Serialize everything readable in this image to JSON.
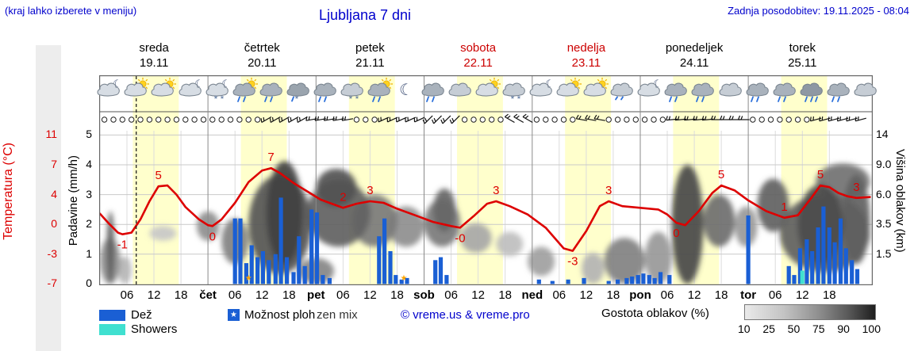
{
  "header": {
    "hint": "(kraj lahko izberete v meniju)",
    "title": "Ljubljana 7 dni",
    "updated": "Zadnja posodobitev: 19.11.2025 - 08:04"
  },
  "colors": {
    "accent_blue": "#0000cc",
    "temp_red": "#dd0000",
    "rain_blue": "#1a5fd4",
    "showers_cyan": "#40e0d0",
    "day_band_yellow": "#ffffcc",
    "weekend_red": "#cc0000",
    "star_orange": "#ffa500"
  },
  "axes": {
    "temp": {
      "title": "Temperatura (°C)",
      "ticks": [
        "11",
        "7",
        "4",
        "0",
        "-3",
        "-7"
      ]
    },
    "precip": {
      "title": "Padavine (mm/h)",
      "ticks": [
        "5",
        "4",
        "3",
        "2",
        "1",
        "0"
      ]
    },
    "cloud_height": {
      "title": "Višina oblakov (km)",
      "ticks": [
        "14",
        "9.0",
        "6.0",
        "3.5",
        "1.5"
      ]
    }
  },
  "days": [
    {
      "name": "sreda",
      "date": "19.11",
      "weekend": false
    },
    {
      "name": "četrtek",
      "date": "20.11",
      "weekend": false
    },
    {
      "name": "petek",
      "date": "21.11",
      "weekend": false
    },
    {
      "name": "sobota",
      "date": "22.11",
      "weekend": true
    },
    {
      "name": "nedelja",
      "date": "23.11",
      "weekend": true
    },
    {
      "name": "ponedeljek",
      "date": "24.11",
      "weekend": false
    },
    {
      "name": "torek",
      "date": "25.11",
      "weekend": false
    }
  ],
  "x_axis": {
    "labels": [
      "06",
      "12",
      "18",
      "čet",
      "06",
      "12",
      "18",
      "pet",
      "06",
      "12",
      "18",
      "sob",
      "06",
      "12",
      "18",
      "ned",
      "06",
      "12",
      "18",
      "pon",
      "06",
      "12",
      "18",
      "tor",
      "06",
      "12",
      "18"
    ]
  },
  "legend": {
    "rain": "Dež",
    "showers": "Showers",
    "chance": "Možnost ploh",
    "star_char": "★",
    "mix": "zen mix",
    "copyright": "© vreme.us & vreme.pro",
    "cloud_density": "Gostota oblakov (%)",
    "density_ticks": [
      "10",
      "25",
      "50",
      "75",
      "90",
      "100"
    ]
  },
  "icons": [
    {
      "h": 2,
      "type": "moon-cloud"
    },
    {
      "h": 8,
      "type": "sun-cloud"
    },
    {
      "h": 14,
      "type": "sun-cloud"
    },
    {
      "h": 20,
      "type": "moon-cloud"
    },
    {
      "h": 26,
      "type": "moon-snow"
    },
    {
      "h": 32,
      "type": "sun-rain"
    },
    {
      "h": 38,
      "type": "rain"
    },
    {
      "h": 44,
      "type": "rain-snow"
    },
    {
      "h": 50,
      "type": "rain"
    },
    {
      "h": 56,
      "type": "snow"
    },
    {
      "h": 62,
      "type": "sun-rain"
    },
    {
      "h": 68,
      "type": "moon"
    },
    {
      "h": 74,
      "type": "rain"
    },
    {
      "h": 80,
      "type": "cloud"
    },
    {
      "h": 86,
      "type": "sun-cloud"
    },
    {
      "h": 92,
      "type": "snow"
    },
    {
      "h": 98,
      "type": "moon-cloud"
    },
    {
      "h": 104,
      "type": "sun-cloud"
    },
    {
      "h": 110,
      "type": "sun-cloud"
    },
    {
      "h": 116,
      "type": "drizzle"
    },
    {
      "h": 122,
      "type": "moon-cloud"
    },
    {
      "h": 128,
      "type": "rain"
    },
    {
      "h": 134,
      "type": "rain"
    },
    {
      "h": 140,
      "type": "cloud"
    },
    {
      "h": 146,
      "type": "rain"
    },
    {
      "h": 152,
      "type": "rain"
    },
    {
      "h": 158,
      "type": "heavy-rain"
    },
    {
      "h": 164,
      "type": "rain"
    },
    {
      "h": 170,
      "type": "cloud"
    }
  ],
  "wind_segments": [
    {
      "from": 0,
      "to": 36,
      "type": "calm"
    },
    {
      "from": 36,
      "to": 46,
      "type": "barb",
      "angle": -120
    },
    {
      "from": 46,
      "to": 56,
      "type": "barb",
      "angle": -100
    },
    {
      "from": 56,
      "to": 62,
      "type": "calm"
    },
    {
      "from": 62,
      "to": 72,
      "type": "barb",
      "angle": -115
    },
    {
      "from": 72,
      "to": 80,
      "type": "barb",
      "angle": -135
    },
    {
      "from": 80,
      "to": 90,
      "type": "calm"
    },
    {
      "from": 90,
      "to": 96,
      "type": "barb",
      "angle": -60
    },
    {
      "from": 96,
      "to": 106,
      "type": "calm"
    },
    {
      "from": 106,
      "to": 112,
      "type": "barb",
      "angle": -80
    },
    {
      "from": 112,
      "to": 126,
      "type": "calm"
    },
    {
      "from": 126,
      "to": 136,
      "type": "barb",
      "angle": -95
    },
    {
      "from": 136,
      "to": 144,
      "type": "barb",
      "angle": -90
    },
    {
      "from": 144,
      "to": 158,
      "type": "calm"
    },
    {
      "from": 158,
      "to": 171,
      "type": "barb",
      "angle": -105
    }
  ],
  "chart_data": {
    "type": "line",
    "title": "Ljubljana 7 dni",
    "x_unit": "hours since 19.11 00:00",
    "x_range": [
      0,
      171
    ],
    "current_time_h": 8.07,
    "temp_axis_range": [
      -7,
      11
    ],
    "precip_axis_range": [
      0,
      5
    ],
    "cloud_height_ticks_km": [
      0,
      1.5,
      3.5,
      6,
      9,
      14
    ],
    "temperature": {
      "color": "#dd0000",
      "points": [
        [
          0,
          1.5
        ],
        [
          2,
          0.3
        ],
        [
          4,
          -0.8
        ],
        [
          5,
          -1
        ],
        [
          7,
          -0.8
        ],
        [
          9,
          0.8
        ],
        [
          11,
          3
        ],
        [
          13,
          4.8
        ],
        [
          15,
          4.9
        ],
        [
          17,
          3.8
        ],
        [
          19,
          2.3
        ],
        [
          22,
          0.8
        ],
        [
          24,
          0.1
        ],
        [
          25,
          0
        ],
        [
          27,
          0.8
        ],
        [
          30,
          2.8
        ],
        [
          33,
          5.3
        ],
        [
          36,
          6.7
        ],
        [
          38,
          7
        ],
        [
          40,
          6.4
        ],
        [
          43,
          5.2
        ],
        [
          46,
          4.2
        ],
        [
          49,
          3.2
        ],
        [
          52,
          2.6
        ],
        [
          54,
          2.2
        ],
        [
          57,
          2.7
        ],
        [
          60,
          3
        ],
        [
          63,
          2.8
        ],
        [
          66,
          2.1
        ],
        [
          70,
          1.3
        ],
        [
          74,
          0.5
        ],
        [
          78,
          0
        ],
        [
          80,
          -0.2
        ],
        [
          83,
          1.2
        ],
        [
          86,
          2.7
        ],
        [
          88,
          3
        ],
        [
          91,
          2.4
        ],
        [
          95,
          1.4
        ],
        [
          99,
          -0.2
        ],
        [
          103,
          -2.7
        ],
        [
          105,
          -3
        ],
        [
          108,
          -0.6
        ],
        [
          111,
          2.4
        ],
        [
          113,
          3
        ],
        [
          116,
          2.4
        ],
        [
          120,
          2.2
        ],
        [
          124,
          2
        ],
        [
          126,
          1.4
        ],
        [
          128,
          0.4
        ],
        [
          130,
          0.1
        ],
        [
          133,
          1.8
        ],
        [
          136,
          4
        ],
        [
          138,
          4.9
        ],
        [
          141,
          4.3
        ],
        [
          144,
          3.1
        ],
        [
          148,
          1.8
        ],
        [
          152,
          1
        ],
        [
          155,
          1.3
        ],
        [
          158,
          3.4
        ],
        [
          160,
          4.9
        ],
        [
          162,
          4.7
        ],
        [
          164,
          4
        ],
        [
          166,
          3.6
        ],
        [
          168,
          3.4
        ],
        [
          171,
          3.5
        ]
      ],
      "labels": [
        {
          "h": 5,
          "text": "-1",
          "pos": "below"
        },
        {
          "h": 13,
          "text": "5",
          "pos": "above"
        },
        {
          "h": 25,
          "text": "0",
          "pos": "below"
        },
        {
          "h": 38,
          "text": "7",
          "pos": "above"
        },
        {
          "h": 54,
          "text": "2",
          "pos": "above"
        },
        {
          "h": 60,
          "text": "3",
          "pos": "above"
        },
        {
          "h": 80,
          "text": "-0",
          "pos": "below"
        },
        {
          "h": 88,
          "text": "3",
          "pos": "above"
        },
        {
          "h": 105,
          "text": "-3",
          "pos": "below"
        },
        {
          "h": 113,
          "text": "3",
          "pos": "above"
        },
        {
          "h": 128,
          "text": "0",
          "pos": "below"
        },
        {
          "h": 138,
          "text": "5",
          "pos": "above"
        },
        {
          "h": 152,
          "text": "1",
          "pos": "above"
        },
        {
          "h": 160,
          "text": "5",
          "pos": "above"
        },
        {
          "h": 168,
          "text": "3",
          "pos": "above"
        }
      ]
    },
    "rain_bars": [
      [
        30,
        2.2
      ],
      [
        31.2,
        2.2
      ],
      [
        32.5,
        0.7
      ],
      [
        33.7,
        1.3
      ],
      [
        35,
        0.9
      ],
      [
        36.2,
        1.1
      ],
      [
        37.5,
        0.8
      ],
      [
        39,
        1.0
      ],
      [
        40.2,
        2.9
      ],
      [
        41.5,
        0.9
      ],
      [
        43,
        0.4
      ],
      [
        44.2,
        1.6
      ],
      [
        45.5,
        0.6
      ],
      [
        47,
        2.5
      ],
      [
        48.2,
        2.4
      ],
      [
        49.5,
        0.3
      ],
      [
        51,
        0.2
      ],
      [
        62,
        1.6
      ],
      [
        63.2,
        2.2
      ],
      [
        64.5,
        1.1
      ],
      [
        65.7,
        0.3
      ],
      [
        67,
        0.15
      ],
      [
        68.2,
        0.2
      ],
      [
        74.5,
        0.8
      ],
      [
        75.7,
        0.9
      ],
      [
        77,
        0.3
      ],
      [
        97.5,
        0.15
      ],
      [
        100.5,
        0.1
      ],
      [
        104,
        0.15
      ],
      [
        107.5,
        0.2
      ],
      [
        113,
        0.1
      ],
      [
        115,
        0.15
      ],
      [
        117,
        0.2
      ],
      [
        118.2,
        0.25
      ],
      [
        119.5,
        0.3
      ],
      [
        120.7,
        0.35
      ],
      [
        122,
        0.3
      ],
      [
        123.2,
        0.2
      ],
      [
        124.5,
        0.4
      ],
      [
        126.5,
        0.3
      ],
      [
        144,
        2.3
      ],
      [
        153,
        0.6
      ],
      [
        154.2,
        0.3
      ],
      [
        155.5,
        1.2
      ],
      [
        157,
        1.5
      ],
      [
        158.2,
        1.1
      ],
      [
        159.5,
        1.9
      ],
      [
        160.7,
        2.6
      ],
      [
        162,
        1.9
      ],
      [
        163.2,
        1.4
      ],
      [
        164.5,
        2.2
      ],
      [
        165.7,
        1.2
      ],
      [
        167,
        0.8
      ],
      [
        168.2,
        0.5
      ]
    ],
    "shower_bars": [
      [
        156,
        0.45
      ]
    ],
    "chance_markers_h": [
      33,
      67.5
    ],
    "clouds": [
      {
        "h": [
          0,
          4.5
        ],
        "km": [
          0,
          2.6
        ],
        "d": 55
      },
      {
        "h": [
          1.5,
          3.2
        ],
        "km": [
          0,
          4.6
        ],
        "d": 82
      },
      {
        "h": [
          4,
          7
        ],
        "km": [
          0,
          1.4
        ],
        "d": 35
      },
      {
        "h": [
          11,
          17
        ],
        "km": [
          2.4,
          3.4
        ],
        "d": 25
      },
      {
        "h": [
          21.5,
          26.5
        ],
        "km": [
          2.4,
          4.6
        ],
        "d": 55
      },
      {
        "h": [
          27,
          33
        ],
        "km": [
          1,
          4
        ],
        "d": 62
      },
      {
        "h": [
          33,
          47
        ],
        "km": [
          0.5,
          8
        ],
        "d": 85
      },
      {
        "h": [
          37,
          45
        ],
        "km": [
          1,
          9.6
        ],
        "d": 96
      },
      {
        "h": [
          44,
          52
        ],
        "km": [
          0,
          1.3
        ],
        "d": 60
      },
      {
        "h": [
          46,
          60
        ],
        "km": [
          2,
          7.5
        ],
        "d": 78
      },
      {
        "h": [
          48,
          57
        ],
        "km": [
          5,
          8.6
        ],
        "d": 86
      },
      {
        "h": [
          56,
          66
        ],
        "km": [
          2,
          6
        ],
        "d": 66
      },
      {
        "h": [
          64,
          72
        ],
        "km": [
          2,
          5
        ],
        "d": 55
      },
      {
        "h": [
          72,
          80
        ],
        "km": [
          2,
          5.6
        ],
        "d": 66
      },
      {
        "h": [
          74,
          79
        ],
        "km": [
          3,
          6.6
        ],
        "d": 76
      },
      {
        "h": [
          80,
          87
        ],
        "km": [
          1.6,
          3.6
        ],
        "d": 42
      },
      {
        "h": [
          88,
          94
        ],
        "km": [
          1.4,
          3
        ],
        "d": 30
      },
      {
        "h": [
          95,
          101
        ],
        "km": [
          0.4,
          2
        ],
        "d": 46
      },
      {
        "h": [
          107,
          112
        ],
        "km": [
          0,
          1.6
        ],
        "d": 36
      },
      {
        "h": [
          112,
          121
        ],
        "km": [
          0,
          2.6
        ],
        "d": 62
      },
      {
        "h": [
          121,
          127
        ],
        "km": [
          0,
          3
        ],
        "d": 50
      },
      {
        "h": [
          127,
          134
        ],
        "km": [
          0,
          9
        ],
        "d": 92
      },
      {
        "h": [
          134,
          141
        ],
        "km": [
          2,
          6
        ],
        "d": 72
      },
      {
        "h": [
          141,
          146
        ],
        "km": [
          2,
          5
        ],
        "d": 50
      },
      {
        "h": [
          146,
          153
        ],
        "km": [
          3,
          7.6
        ],
        "d": 78
      },
      {
        "h": [
          151,
          171
        ],
        "km": [
          0.6,
          6
        ],
        "d": 80
      },
      {
        "h": [
          155,
          165
        ],
        "km": [
          1,
          7
        ],
        "d": 90
      },
      {
        "h": [
          159,
          171
        ],
        "km": [
          5.6,
          9.2
        ],
        "d": 70
      },
      {
        "h": [
          165,
          171
        ],
        "km": [
          1,
          8
        ],
        "d": 78
      }
    ]
  }
}
